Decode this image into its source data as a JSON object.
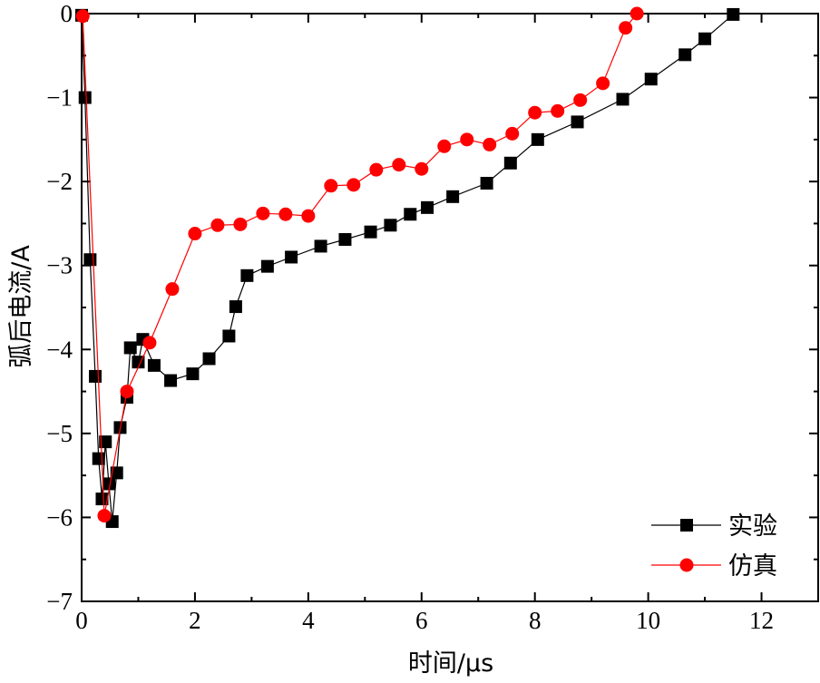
{
  "chart_data": {
    "type": "line",
    "xlabel": "时间/μs",
    "ylabel": "弧后电流/A",
    "xlim": [
      0,
      13
    ],
    "ylim": [
      -7,
      0
    ],
    "xticks": [
      0,
      2,
      4,
      6,
      8,
      10,
      12
    ],
    "yticks": [
      0,
      -1,
      -2,
      -3,
      -4,
      -5,
      -6,
      -7
    ],
    "xtick_labels": [
      "0",
      "2",
      "4",
      "6",
      "8",
      "10",
      "12"
    ],
    "ytick_labels": [
      "0",
      "−1",
      "−2",
      "−3",
      "−4",
      "−5",
      "−6",
      "−7"
    ],
    "grid": false,
    "legend": "bottom-right",
    "series": [
      {
        "name": "实验",
        "color": "#000000",
        "marker": "square",
        "x": [
          0.0,
          0.06,
          0.15,
          0.24,
          0.3,
          0.36,
          0.42,
          0.48,
          0.54,
          0.62,
          0.68,
          0.8,
          0.86,
          1.0,
          1.08,
          1.28,
          1.57,
          1.96,
          2.25,
          2.6,
          2.72,
          2.92,
          3.28,
          3.7,
          4.22,
          4.65,
          5.1,
          5.45,
          5.8,
          6.1,
          6.55,
          7.15,
          7.57,
          8.05,
          8.75,
          9.55,
          10.05,
          10.65,
          11.0,
          11.5
        ],
        "y": [
          -0.02,
          -1.0,
          -2.93,
          -4.32,
          -5.3,
          -5.78,
          -5.1,
          -5.6,
          -6.05,
          -5.47,
          -4.93,
          -4.57,
          -3.98,
          -4.15,
          -3.88,
          -4.19,
          -4.37,
          -4.29,
          -4.11,
          -3.84,
          -3.49,
          -3.12,
          -3.01,
          -2.9,
          -2.77,
          -2.69,
          -2.6,
          -2.52,
          -2.39,
          -2.31,
          -2.18,
          -2.02,
          -1.78,
          -1.5,
          -1.29,
          -1.02,
          -0.78,
          -0.49,
          -0.3,
          -0.01
        ]
      },
      {
        "name": "仿真",
        "color": "#ff0000",
        "marker": "circle",
        "x": [
          0.02,
          0.4,
          0.8,
          1.2,
          1.6,
          2.0,
          2.4,
          2.8,
          3.2,
          3.6,
          4.0,
          4.4,
          4.8,
          5.2,
          5.6,
          6.0,
          6.4,
          6.8,
          7.2,
          7.6,
          8.0,
          8.4,
          8.8,
          9.2,
          9.6,
          9.8
        ],
        "y": [
          -0.03,
          -5.98,
          -4.5,
          -3.92,
          -3.28,
          -2.62,
          -2.52,
          -2.51,
          -2.38,
          -2.39,
          -2.41,
          -2.05,
          -2.04,
          -1.86,
          -1.8,
          -1.85,
          -1.58,
          -1.5,
          -1.56,
          -1.43,
          -1.18,
          -1.16,
          -1.03,
          -0.83,
          -0.17,
          0.0
        ]
      }
    ]
  }
}
